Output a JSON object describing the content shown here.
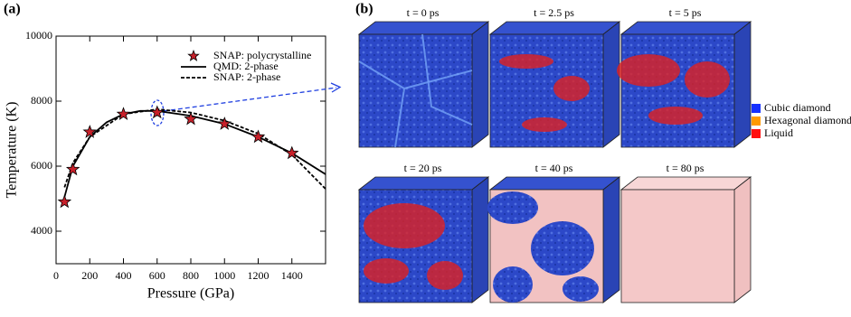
{
  "chart_data": {
    "type": "line",
    "panel_label": "(a)",
    "xlabel": "Pressure (GPa)",
    "ylabel": "Temperature (K)",
    "xlim": [
      0,
      1600
    ],
    "ylim": [
      3000,
      10000
    ],
    "xticks": [
      0,
      200,
      400,
      600,
      800,
      1000,
      1200,
      1400
    ],
    "yticks": [
      4000,
      6000,
      8000,
      10000
    ],
    "legend": "top-right",
    "series": [
      {
        "name": "SNAP: polycrystalline",
        "type": "scatter",
        "marker": "star",
        "color": "#c8202a",
        "x": [
          50,
          100,
          200,
          400,
          600,
          800,
          1000,
          1200,
          1400
        ],
        "values": [
          4900,
          5900,
          7050,
          7600,
          7650,
          7450,
          7300,
          6900,
          6400
        ]
      },
      {
        "name": "QMD: 2-phase",
        "type": "line",
        "dash": "solid",
        "color": "#000000",
        "x": [
          50,
          100,
          200,
          300,
          400,
          500,
          600,
          800,
          1000,
          1200,
          1400,
          1600
        ],
        "values": [
          5050,
          6000,
          6900,
          7350,
          7600,
          7700,
          7700,
          7550,
          7300,
          6900,
          6400,
          5750
        ]
      },
      {
        "name": "SNAP: 2-phase",
        "type": "line",
        "dash": "dashed",
        "color": "#000000",
        "x": [
          50,
          100,
          200,
          400,
          600,
          800,
          1000,
          1200,
          1400,
          1600
        ],
        "values": [
          5350,
          6100,
          6900,
          7600,
          7750,
          7650,
          7400,
          7000,
          6350,
          5300
        ]
      }
    ]
  },
  "panel_b": {
    "panel_label": "(b)",
    "snapshots": [
      "t = 0 ps",
      "t = 2.5 ps",
      "t = 5 ps",
      "t = 20 ps",
      "t = 40 ps",
      "t = 80 ps"
    ],
    "legend": [
      {
        "label": "Cubic diamond",
        "color": "#1530ff"
      },
      {
        "label": "Hexagonal diamond",
        "color": "#ff9a00"
      },
      {
        "label": "Liquid",
        "color": "#ff1010"
      }
    ]
  }
}
